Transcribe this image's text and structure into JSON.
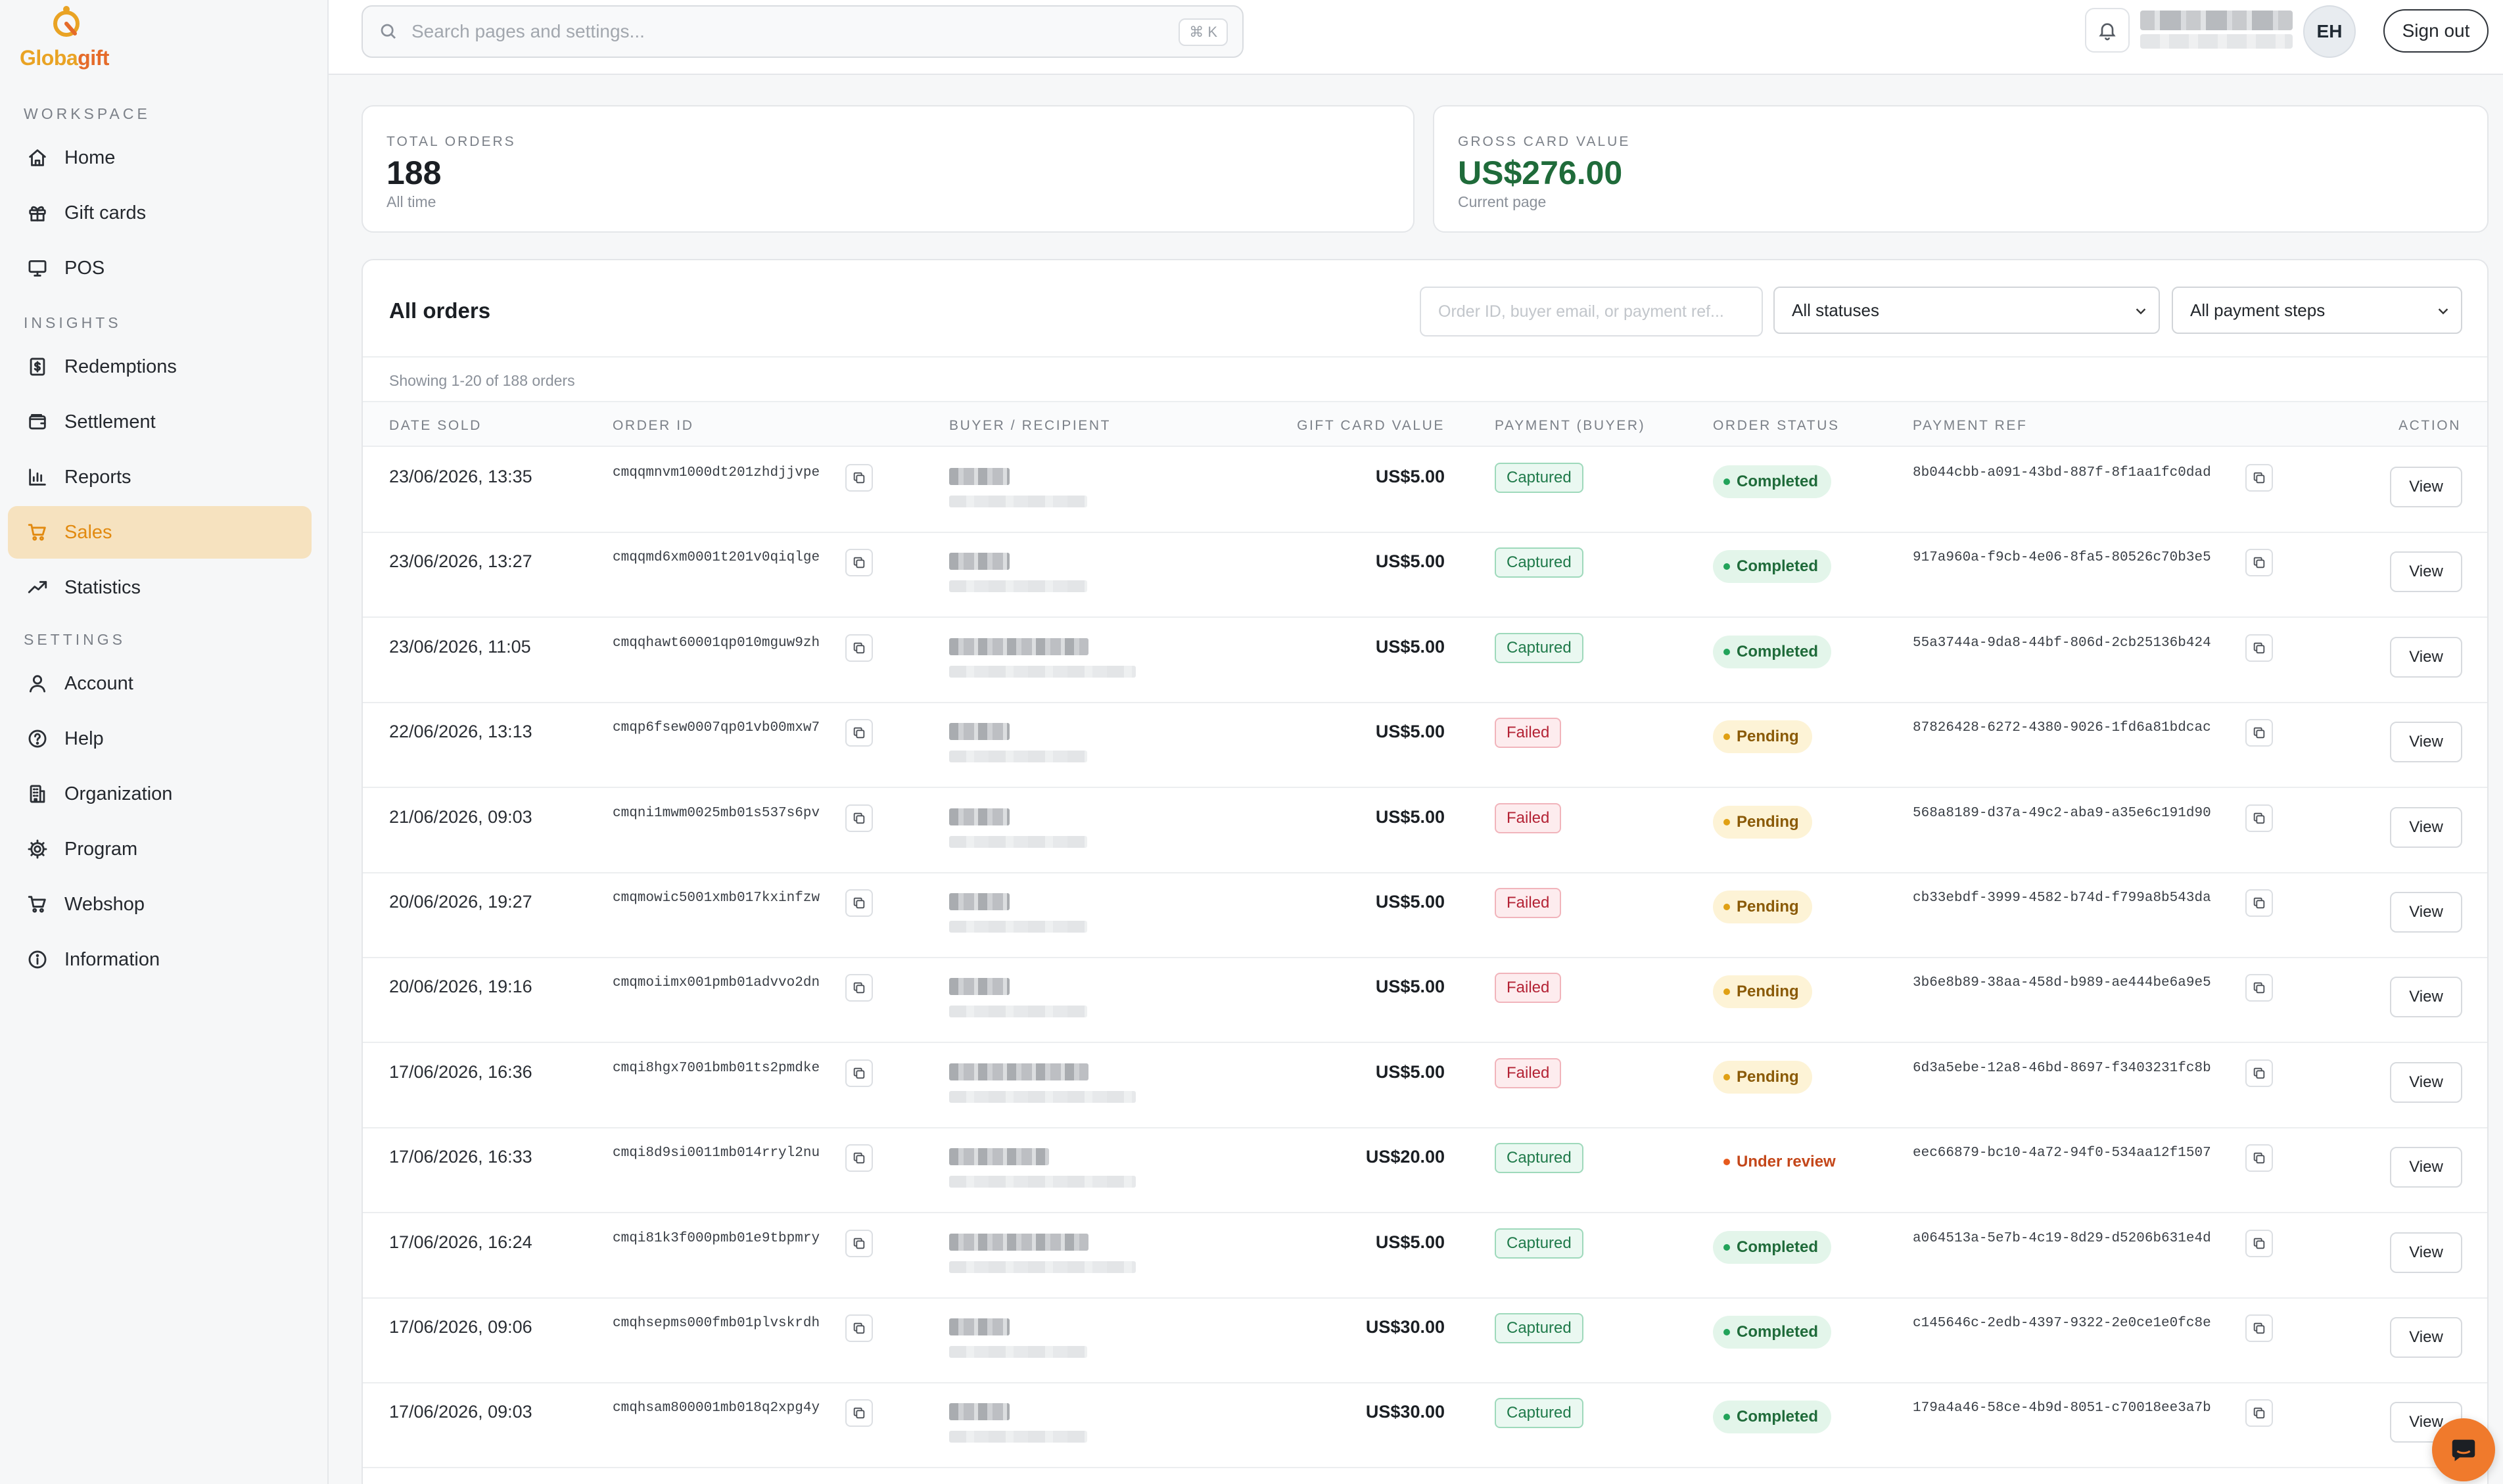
{
  "brand": {
    "name_part1": "Globa",
    "name_part2": "gift",
    "primary_color": "#e9a324",
    "accent_color": "#e56b2a"
  },
  "sidebar": {
    "sections": [
      {
        "label": "WORKSPACE",
        "items": [
          {
            "label": "Home",
            "icon": "home-icon"
          },
          {
            "label": "Gift cards",
            "icon": "gift-icon"
          },
          {
            "label": "POS",
            "icon": "monitor-icon"
          }
        ]
      },
      {
        "label": "INSIGHTS",
        "items": [
          {
            "label": "Redemptions",
            "icon": "receipt-icon"
          },
          {
            "label": "Settlement",
            "icon": "wallet-icon"
          },
          {
            "label": "Reports",
            "icon": "bar-chart-icon"
          },
          {
            "label": "Sales",
            "icon": "cart-icon",
            "active": true
          },
          {
            "label": "Statistics",
            "icon": "trend-icon"
          }
        ]
      },
      {
        "label": "SETTINGS",
        "items": [
          {
            "label": "Account",
            "icon": "user-icon"
          },
          {
            "label": "Help",
            "icon": "help-icon"
          },
          {
            "label": "Organization",
            "icon": "building-icon"
          },
          {
            "label": "Program",
            "icon": "gear-icon"
          },
          {
            "label": "Webshop",
            "icon": "cart-icon"
          },
          {
            "label": "Information",
            "icon": "info-icon"
          }
        ]
      }
    ]
  },
  "topbar": {
    "search_placeholder": "Search pages and settings...",
    "shortcut": "⌘ K",
    "avatar_initials": "EH",
    "sign_out_label": "Sign out"
  },
  "stats": {
    "total_orders": {
      "label": "TOTAL ORDERS",
      "value": "188",
      "sub": "All time"
    },
    "gross_value": {
      "label": "GROSS CARD VALUE",
      "value": "US$276.00",
      "sub": "Current page"
    }
  },
  "orders": {
    "title": "All orders",
    "search_placeholder": "Order ID, buyer email, or payment ref...",
    "status_filter": "All statuses",
    "payment_filter": "All payment steps",
    "showing": "Showing 1-20 of 188 orders",
    "columns": {
      "date": "DATE SOLD",
      "order_id": "ORDER ID",
      "buyer": "BUYER / RECIPIENT",
      "value": "GIFT CARD VALUE",
      "payment": "PAYMENT (BUYER)",
      "status": "ORDER STATUS",
      "ref": "PAYMENT REF",
      "action": "ACTION"
    },
    "view_label": "View",
    "rows": [
      {
        "date": "23/06/2026, 13:35",
        "id": "cmqqmnvm1000dt201zhdjjvpe",
        "value": "US$5.00",
        "payment": "Captured",
        "status": "Completed",
        "ref": "8b044cbb-a091-43bd-887f-8f1aa1fc0dad"
      },
      {
        "date": "23/06/2026, 13:27",
        "id": "cmqqmd6xm0001t201v0qiqlge",
        "value": "US$5.00",
        "payment": "Captured",
        "status": "Completed",
        "ref": "917a960a-f9cb-4e06-8fa5-80526c70b3e5"
      },
      {
        "date": "23/06/2026, 11:05",
        "id": "cmqqhawt60001qp010mguw9zh",
        "value": "US$5.00",
        "payment": "Captured",
        "status": "Completed",
        "ref": "55a3744a-9da8-44bf-806d-2cb25136b424"
      },
      {
        "date": "22/06/2026, 13:13",
        "id": "cmqp6fsew0007qp01vb00mxw7",
        "value": "US$5.00",
        "payment": "Failed",
        "status": "Pending",
        "ref": "87826428-6272-4380-9026-1fd6a81bdcac"
      },
      {
        "date": "21/06/2026, 09:03",
        "id": "cmqni1mwm0025mb01s537s6pv",
        "value": "US$5.00",
        "payment": "Failed",
        "status": "Pending",
        "ref": "568a8189-d37a-49c2-aba9-a35e6c191d90"
      },
      {
        "date": "20/06/2026, 19:27",
        "id": "cmqmowic5001xmb017kxinfzw",
        "value": "US$5.00",
        "payment": "Failed",
        "status": "Pending",
        "ref": "cb33ebdf-3999-4582-b74d-f799a8b543da"
      },
      {
        "date": "20/06/2026, 19:16",
        "id": "cmqmoiimx001pmb01advvo2dn",
        "value": "US$5.00",
        "payment": "Failed",
        "status": "Pending",
        "ref": "3b6e8b89-38aa-458d-b989-ae444be6a9e5"
      },
      {
        "date": "17/06/2026, 16:36",
        "id": "cmqi8hgx7001bmb01ts2pmdke",
        "value": "US$5.00",
        "payment": "Failed",
        "status": "Pending",
        "ref": "6d3a5ebe-12a8-46bd-8697-f3403231fc8b"
      },
      {
        "date": "17/06/2026, 16:33",
        "id": "cmqi8d9si0011mb014rryl2nu",
        "value": "US$20.00",
        "payment": "Captured",
        "status": "Under review",
        "ref": "eec66879-bc10-4a72-94f0-534aa12f1507"
      },
      {
        "date": "17/06/2026, 16:24",
        "id": "cmqi81k3f000pmb01e9tbpmry",
        "value": "US$5.00",
        "payment": "Captured",
        "status": "Completed",
        "ref": "a064513a-5e7b-4c19-8d29-d5206b631e4d"
      },
      {
        "date": "17/06/2026, 09:06",
        "id": "cmqhsepms000fmb01plvskrdh",
        "value": "US$30.00",
        "payment": "Captured",
        "status": "Completed",
        "ref": "c145646c-2edb-4397-9322-2e0ce1e0fc8e"
      },
      {
        "date": "17/06/2026, 09:03",
        "id": "cmqhsam800001mb018q2xpg4y",
        "value": "US$30.00",
        "payment": "Captured",
        "status": "Completed",
        "ref": "179a4a46-58ce-4b9d-8051-c70018ee3a7b"
      }
    ]
  }
}
